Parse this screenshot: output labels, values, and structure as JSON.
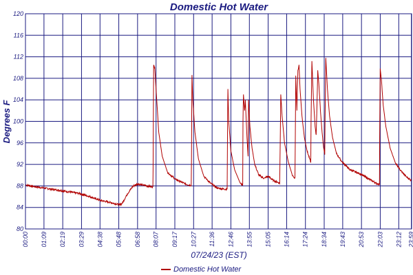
{
  "chart_data": {
    "type": "line",
    "title": "Domestic Hot Water",
    "xlabel": "07/24/23 (EST)",
    "ylabel": "Degrees F",
    "ylim": [
      80,
      120
    ],
    "yticks": [
      "80",
      "84",
      "88",
      "92",
      "96",
      "100",
      "104",
      "108",
      "112",
      "116",
      "120"
    ],
    "xlim": [
      0,
      1440
    ],
    "xticks": [
      {
        "label": "00:00",
        "t": 0
      },
      {
        "label": "01:09",
        "t": 69
      },
      {
        "label": "02:19",
        "t": 139
      },
      {
        "label": "03:29",
        "t": 209
      },
      {
        "label": "04:38",
        "t": 278
      },
      {
        "label": "05:48",
        "t": 348
      },
      {
        "label": "06:58",
        "t": 418
      },
      {
        "label": "08:07",
        "t": 487
      },
      {
        "label": "09:17",
        "t": 557
      },
      {
        "label": "10:27",
        "t": 627
      },
      {
        "label": "11:36",
        "t": 696
      },
      {
        "label": "12:46",
        "t": 766
      },
      {
        "label": "13:55",
        "t": 835
      },
      {
        "label": "15:05",
        "t": 905
      },
      {
        "label": "16:14",
        "t": 974
      },
      {
        "label": "17:24",
        "t": 1044
      },
      {
        "label": "18:34",
        "t": 1114
      },
      {
        "label": "19:43",
        "t": 1183
      },
      {
        "label": "20:53",
        "t": 1253
      },
      {
        "label": "22:03",
        "t": 1323
      },
      {
        "label": "23:12",
        "t": 1392
      },
      {
        "label": "23:59",
        "t": 1439
      }
    ],
    "grid": true,
    "legend_position": "bottom",
    "series": [
      {
        "name": "Domestic Hot Water",
        "color": "#b00000",
        "points": [
          [
            0,
            88.2
          ],
          [
            30,
            87.9
          ],
          [
            69,
            87.6
          ],
          [
            110,
            87.3
          ],
          [
            150,
            87.0
          ],
          [
            200,
            86.6
          ],
          [
            240,
            86.0
          ],
          [
            280,
            85.3
          ],
          [
            320,
            84.9
          ],
          [
            350,
            84.5
          ],
          [
            360,
            84.7
          ],
          [
            380,
            86.5
          ],
          [
            400,
            87.9
          ],
          [
            418,
            88.4
          ],
          [
            440,
            88.1
          ],
          [
            465,
            87.9
          ],
          [
            475,
            87.8
          ],
          [
            476,
            91.0
          ],
          [
            478,
            110.4
          ],
          [
            482,
            110.0
          ],
          [
            487,
            106.0
          ],
          [
            497,
            98.0
          ],
          [
            510,
            93.5
          ],
          [
            530,
            90.5
          ],
          [
            560,
            89.2
          ],
          [
            600,
            88.3
          ],
          [
            618,
            88.1
          ],
          [
            619,
            93.0
          ],
          [
            621,
            108.6
          ],
          [
            624,
            104.0
          ],
          [
            632,
            98.0
          ],
          [
            645,
            93.0
          ],
          [
            665,
            89.8
          ],
          [
            690,
            88.5
          ],
          [
            715,
            87.6
          ],
          [
            740,
            87.4
          ],
          [
            752,
            87.4
          ],
          [
            753,
            95.0
          ],
          [
            755,
            106.0
          ],
          [
            758,
            100.0
          ],
          [
            766,
            94.5
          ],
          [
            780,
            91.0
          ],
          [
            800,
            88.6
          ],
          [
            810,
            88.1
          ],
          [
            811,
            100.0
          ],
          [
            813,
            105.0
          ],
          [
            817,
            102.0
          ],
          [
            820,
            104.0
          ],
          [
            826,
            97.0
          ],
          [
            830,
            93.5
          ],
          [
            832,
            104.0
          ],
          [
            837,
            99.0
          ],
          [
            845,
            95.0
          ],
          [
            855,
            92.0
          ],
          [
            870,
            90.0
          ],
          [
            890,
            89.4
          ],
          [
            905,
            89.8
          ],
          [
            925,
            89.0
          ],
          [
            945,
            88.6
          ],
          [
            948,
            88.4
          ],
          [
            950,
            96.0
          ],
          [
            952,
            105.0
          ],
          [
            957,
            101.0
          ],
          [
            966,
            96.0
          ],
          [
            980,
            92.5
          ],
          [
            995,
            90.0
          ],
          [
            1005,
            89.4
          ],
          [
            1006,
            95.0
          ],
          [
            1008,
            108.5
          ],
          [
            1012,
            102.0
          ],
          [
            1016,
            109.5
          ],
          [
            1020,
            110.5
          ],
          [
            1024,
            106.0
          ],
          [
            1031,
            101.0
          ],
          [
            1040,
            97.0
          ],
          [
            1050,
            94.5
          ],
          [
            1060,
            93.0
          ],
          [
            1064,
            92.4
          ],
          [
            1065,
            100.0
          ],
          [
            1068,
            111.2
          ],
          [
            1074,
            104.0
          ],
          [
            1080,
            99.0
          ],
          [
            1084,
            97.5
          ],
          [
            1086,
            101.0
          ],
          [
            1090,
            109.5
          ],
          [
            1094,
            107.0
          ],
          [
            1100,
            102.0
          ],
          [
            1106,
            98.0
          ],
          [
            1112,
            95.0
          ],
          [
            1116,
            93.8
          ],
          [
            1117,
            100.0
          ],
          [
            1120,
            111.8
          ],
          [
            1126,
            106.0
          ],
          [
            1134,
            101.0
          ],
          [
            1145,
            97.0
          ],
          [
            1160,
            94.0
          ],
          [
            1180,
            92.5
          ],
          [
            1210,
            91.0
          ],
          [
            1250,
            90.2
          ],
          [
            1280,
            89.3
          ],
          [
            1312,
            88.4
          ],
          [
            1320,
            88.3
          ],
          [
            1321,
            97.0
          ],
          [
            1323,
            109.8
          ],
          [
            1327,
            108.0
          ],
          [
            1334,
            103.0
          ],
          [
            1344,
            99.0
          ],
          [
            1360,
            95.0
          ],
          [
            1380,
            92.2
          ],
          [
            1400,
            90.8
          ],
          [
            1420,
            89.7
          ],
          [
            1439,
            89.0
          ]
        ]
      }
    ]
  }
}
